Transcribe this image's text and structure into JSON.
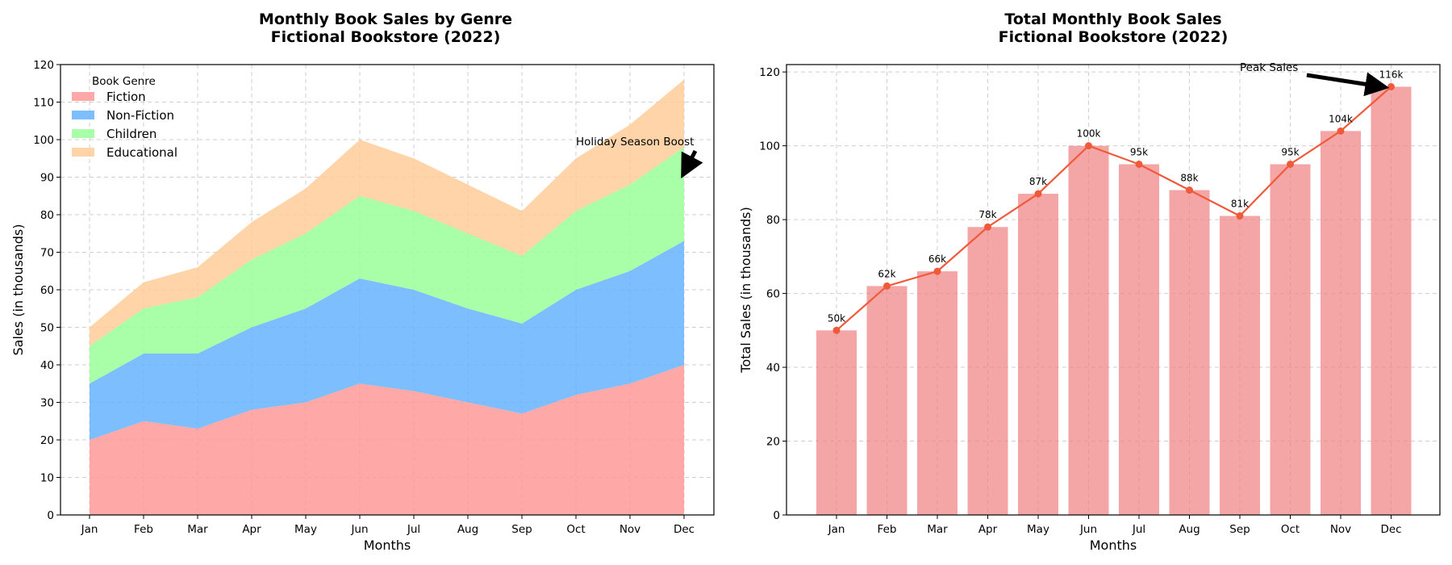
{
  "chart_data": [
    {
      "type": "area",
      "stacked": true,
      "title": "Monthly Book Sales by Genre",
      "subtitle": "Fictional Bookstore (2022)",
      "xlabel": "Months",
      "ylabel": "Sales (in thousands)",
      "categories": [
        "Jan",
        "Feb",
        "Mar",
        "Apr",
        "May",
        "Jun",
        "Jul",
        "Aug",
        "Sep",
        "Oct",
        "Nov",
        "Dec"
      ],
      "ylim": [
        0,
        120
      ],
      "yticks": [
        0,
        10,
        20,
        30,
        40,
        50,
        60,
        70,
        80,
        90,
        100,
        110,
        120
      ],
      "grid": true,
      "legend": {
        "title": "Book Genre",
        "placement": "upper-left"
      },
      "series": [
        {
          "name": "Fiction",
          "color": "#ff9999",
          "values": [
            20,
            25,
            23,
            28,
            30,
            35,
            33,
            30,
            27,
            32,
            35,
            40
          ]
        },
        {
          "name": "Non-Fiction",
          "color": "#66b3ff",
          "values": [
            15,
            18,
            20,
            22,
            25,
            28,
            27,
            25,
            24,
            28,
            30,
            33
          ]
        },
        {
          "name": "Children",
          "color": "#99ff99",
          "values": [
            10,
            12,
            15,
            18,
            20,
            22,
            21,
            20,
            18,
            21,
            23,
            25
          ]
        },
        {
          "name": "Educational",
          "color": "#ffcc99",
          "values": [
            5,
            7,
            8,
            10,
            12,
            15,
            14,
            13,
            12,
            14,
            16,
            18
          ]
        }
      ],
      "annotation": {
        "text": "Holiday Season Boost",
        "category": "Dec",
        "value": 90
      }
    },
    {
      "type": "bar",
      "title": "Total Monthly Book Sales",
      "subtitle": "Fictional Bookstore (2022)",
      "xlabel": "Months",
      "ylabel": "Total Sales (in thousands)",
      "categories": [
        "Jan",
        "Feb",
        "Mar",
        "Apr",
        "May",
        "Jun",
        "Jul",
        "Aug",
        "Sep",
        "Oct",
        "Nov",
        "Dec"
      ],
      "values": [
        50,
        62,
        66,
        78,
        87,
        100,
        95,
        88,
        81,
        95,
        104,
        116
      ],
      "data_labels": [
        "50k",
        "62k",
        "66k",
        "78k",
        "87k",
        "100k",
        "95k",
        "88k",
        "81k",
        "95k",
        "104k",
        "116k"
      ],
      "ylim": [
        0,
        122
      ],
      "yticks": [
        0,
        20,
        40,
        60,
        80,
        100,
        120
      ],
      "grid": true,
      "bar_color": "#f08080",
      "line_color": "#f05a3a",
      "annotation": {
        "text": "Peak Sales",
        "category": "Dec",
        "value": 116
      }
    }
  ]
}
